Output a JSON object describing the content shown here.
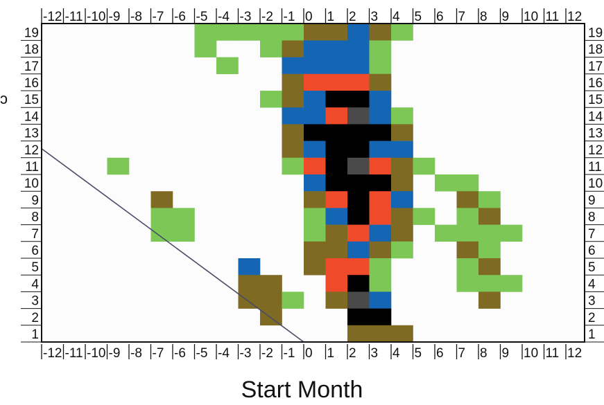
{
  "chart_data": {
    "type": "heatmap",
    "title": "",
    "xlabel": "Start Month",
    "ylabel": "",
    "x_ticks": [
      "-12",
      "-11",
      "-10",
      "-9",
      "-8",
      "-7",
      "-6",
      "-5",
      "-4",
      "-3",
      "-2",
      "-1",
      "0",
      "1",
      "2",
      "3",
      "4",
      "5",
      "6",
      "7",
      "8",
      "9",
      "10",
      "11",
      "12"
    ],
    "y_ticks": [
      "1",
      "2",
      "3",
      "4",
      "5",
      "6",
      "7",
      "8",
      "9",
      "10",
      "11",
      "12",
      "13",
      "14",
      "15",
      "16",
      "17",
      "18",
      "19"
    ],
    "x_range": [
      -12,
      12
    ],
    "y_range": [
      1,
      19
    ],
    "grid": false,
    "legend": "none",
    "colors": {
      "green": "#7cc756",
      "olive": "#7f6a24",
      "blue": "#1466b4",
      "red": "#ef4b2b",
      "black": "#000000",
      "gray": "#4a4a4a",
      "plot_background": "#fcfcfc",
      "frame": "#111111",
      "diagonal": "#4a4a66"
    },
    "diagonal_line": [
      [
        -13,
        13.5
      ],
      [
        0,
        1
      ]
    ],
    "stray_glyph": "ɔ",
    "cells": [
      [
        -5,
        19,
        "green"
      ],
      [
        -4,
        19,
        "green"
      ],
      [
        -3,
        19,
        "green"
      ],
      [
        -2,
        19,
        "green"
      ],
      [
        -1,
        19,
        "green"
      ],
      [
        0,
        19,
        "olive"
      ],
      [
        1,
        19,
        "olive"
      ],
      [
        2,
        19,
        "blue"
      ],
      [
        3,
        19,
        "olive"
      ],
      [
        4,
        19,
        "green"
      ],
      [
        -5,
        18,
        "green"
      ],
      [
        -2,
        18,
        "green"
      ],
      [
        -1,
        18,
        "olive"
      ],
      [
        0,
        18,
        "blue"
      ],
      [
        1,
        18,
        "blue"
      ],
      [
        2,
        18,
        "blue"
      ],
      [
        3,
        18,
        "green"
      ],
      [
        -4,
        17,
        "green"
      ],
      [
        -1,
        17,
        "blue"
      ],
      [
        0,
        17,
        "blue"
      ],
      [
        1,
        17,
        "blue"
      ],
      [
        2,
        17,
        "blue"
      ],
      [
        3,
        17,
        "green"
      ],
      [
        -1,
        16,
        "olive"
      ],
      [
        0,
        16,
        "red"
      ],
      [
        1,
        16,
        "red"
      ],
      [
        2,
        16,
        "red"
      ],
      [
        3,
        16,
        "olive"
      ],
      [
        -2,
        15,
        "green"
      ],
      [
        -1,
        15,
        "olive"
      ],
      [
        0,
        15,
        "blue"
      ],
      [
        1,
        15,
        "black"
      ],
      [
        2,
        15,
        "black"
      ],
      [
        3,
        15,
        "blue"
      ],
      [
        -1,
        14,
        "blue"
      ],
      [
        0,
        14,
        "blue"
      ],
      [
        1,
        14,
        "red"
      ],
      [
        2,
        14,
        "gray"
      ],
      [
        3,
        14,
        "blue"
      ],
      [
        4,
        14,
        "green"
      ],
      [
        -1,
        13,
        "olive"
      ],
      [
        0,
        13,
        "black"
      ],
      [
        1,
        13,
        "black"
      ],
      [
        2,
        13,
        "black"
      ],
      [
        3,
        13,
        "black"
      ],
      [
        4,
        13,
        "olive"
      ],
      [
        -1,
        12,
        "olive"
      ],
      [
        0,
        12,
        "blue"
      ],
      [
        1,
        12,
        "black"
      ],
      [
        2,
        12,
        "black"
      ],
      [
        3,
        12,
        "blue"
      ],
      [
        4,
        12,
        "blue"
      ],
      [
        -9,
        11,
        "green"
      ],
      [
        -1,
        11,
        "green"
      ],
      [
        0,
        11,
        "red"
      ],
      [
        1,
        11,
        "black"
      ],
      [
        2,
        11,
        "gray"
      ],
      [
        3,
        11,
        "red"
      ],
      [
        4,
        11,
        "olive"
      ],
      [
        5,
        11,
        "green"
      ],
      [
        0,
        10,
        "blue"
      ],
      [
        1,
        10,
        "black"
      ],
      [
        2,
        10,
        "black"
      ],
      [
        3,
        10,
        "black"
      ],
      [
        4,
        10,
        "olive"
      ],
      [
        6,
        10,
        "green"
      ],
      [
        7,
        10,
        "green"
      ],
      [
        -7,
        9,
        "olive"
      ],
      [
        0,
        9,
        "olive"
      ],
      [
        1,
        9,
        "red"
      ],
      [
        2,
        9,
        "black"
      ],
      [
        3,
        9,
        "red"
      ],
      [
        4,
        9,
        "blue"
      ],
      [
        7,
        9,
        "olive"
      ],
      [
        8,
        9,
        "green"
      ],
      [
        -7,
        8,
        "green"
      ],
      [
        -6,
        8,
        "green"
      ],
      [
        0,
        8,
        "green"
      ],
      [
        1,
        8,
        "blue"
      ],
      [
        2,
        8,
        "black"
      ],
      [
        3,
        8,
        "red"
      ],
      [
        4,
        8,
        "olive"
      ],
      [
        5,
        8,
        "green"
      ],
      [
        7,
        8,
        "green"
      ],
      [
        8,
        8,
        "olive"
      ],
      [
        -7,
        7,
        "green"
      ],
      [
        -6,
        7,
        "green"
      ],
      [
        0,
        7,
        "green"
      ],
      [
        1,
        7,
        "olive"
      ],
      [
        2,
        7,
        "red"
      ],
      [
        3,
        7,
        "blue"
      ],
      [
        4,
        7,
        "olive"
      ],
      [
        6,
        7,
        "green"
      ],
      [
        7,
        7,
        "green"
      ],
      [
        8,
        7,
        "green"
      ],
      [
        9,
        7,
        "green"
      ],
      [
        0,
        6,
        "olive"
      ],
      [
        1,
        6,
        "olive"
      ],
      [
        2,
        6,
        "blue"
      ],
      [
        3,
        6,
        "olive"
      ],
      [
        4,
        6,
        "green"
      ],
      [
        7,
        6,
        "olive"
      ],
      [
        8,
        6,
        "green"
      ],
      [
        -3,
        5,
        "blue"
      ],
      [
        0,
        5,
        "olive"
      ],
      [
        1,
        5,
        "red"
      ],
      [
        2,
        5,
        "red"
      ],
      [
        3,
        5,
        "green"
      ],
      [
        7,
        5,
        "green"
      ],
      [
        8,
        5,
        "olive"
      ],
      [
        -3,
        4,
        "olive"
      ],
      [
        -2,
        4,
        "olive"
      ],
      [
        1,
        4,
        "red"
      ],
      [
        2,
        4,
        "black"
      ],
      [
        3,
        4,
        "green"
      ],
      [
        7,
        4,
        "green"
      ],
      [
        8,
        4,
        "green"
      ],
      [
        9,
        4,
        "green"
      ],
      [
        -3,
        3,
        "olive"
      ],
      [
        -2,
        3,
        "olive"
      ],
      [
        -1,
        3,
        "green"
      ],
      [
        1,
        3,
        "olive"
      ],
      [
        2,
        3,
        "gray"
      ],
      [
        3,
        3,
        "blue"
      ],
      [
        8,
        3,
        "olive"
      ],
      [
        -2,
        2,
        "olive"
      ],
      [
        2,
        2,
        "black"
      ],
      [
        3,
        2,
        "black"
      ],
      [
        2,
        1,
        "olive"
      ],
      [
        3,
        1,
        "olive"
      ],
      [
        4,
        1,
        "olive"
      ]
    ]
  }
}
